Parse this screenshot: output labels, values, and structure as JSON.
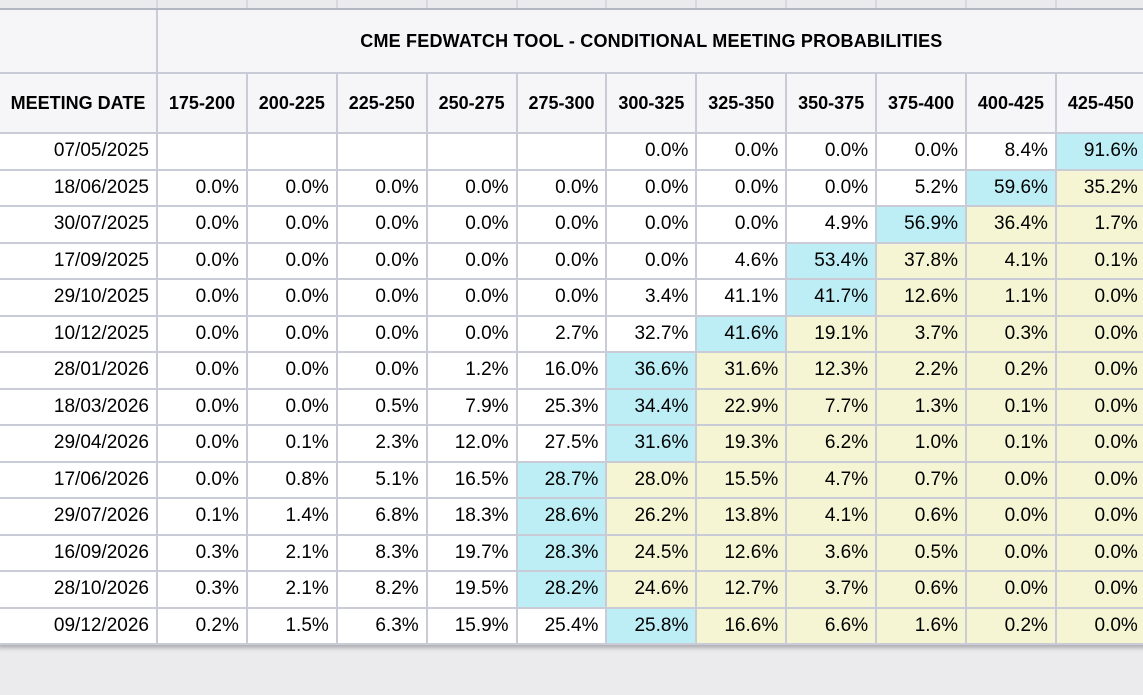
{
  "title": "CME FEDWATCH TOOL - CONDITIONAL MEETING PROBABILITIES",
  "table": {
    "corner_header": "MEETING DATE",
    "rate_bins": [
      "175-200",
      "200-225",
      "225-250",
      "250-275",
      "275-300",
      "300-325",
      "325-350",
      "350-375",
      "375-400",
      "400-425",
      "425-450"
    ],
    "rows": [
      {
        "date": "07/05/2025",
        "values": [
          "",
          "",
          "",
          "",
          "",
          "0.0%",
          "0.0%",
          "0.0%",
          "0.0%",
          "8.4%",
          "91.6%"
        ],
        "highlight": "wwwwwwwwwwc"
      },
      {
        "date": "18/06/2025",
        "values": [
          "0.0%",
          "0.0%",
          "0.0%",
          "0.0%",
          "0.0%",
          "0.0%",
          "0.0%",
          "0.0%",
          "5.2%",
          "59.6%",
          "35.2%"
        ],
        "highlight": "wwwwwwwwwcy"
      },
      {
        "date": "30/07/2025",
        "values": [
          "0.0%",
          "0.0%",
          "0.0%",
          "0.0%",
          "0.0%",
          "0.0%",
          "0.0%",
          "4.9%",
          "56.9%",
          "36.4%",
          "1.7%"
        ],
        "highlight": "wwwwwwwwcyy"
      },
      {
        "date": "17/09/2025",
        "values": [
          "0.0%",
          "0.0%",
          "0.0%",
          "0.0%",
          "0.0%",
          "0.0%",
          "4.6%",
          "53.4%",
          "37.8%",
          "4.1%",
          "0.1%"
        ],
        "highlight": "wwwwwwwcyyy"
      },
      {
        "date": "29/10/2025",
        "values": [
          "0.0%",
          "0.0%",
          "0.0%",
          "0.0%",
          "0.0%",
          "3.4%",
          "41.1%",
          "41.7%",
          "12.6%",
          "1.1%",
          "0.0%"
        ],
        "highlight": "wwwwwwwcyyy"
      },
      {
        "date": "10/12/2025",
        "values": [
          "0.0%",
          "0.0%",
          "0.0%",
          "0.0%",
          "2.7%",
          "32.7%",
          "41.6%",
          "19.1%",
          "3.7%",
          "0.3%",
          "0.0%"
        ],
        "highlight": "wwwwwwcyyyy"
      },
      {
        "date": "28/01/2026",
        "values": [
          "0.0%",
          "0.0%",
          "0.0%",
          "1.2%",
          "16.0%",
          "36.6%",
          "31.6%",
          "12.3%",
          "2.2%",
          "0.2%",
          "0.0%"
        ],
        "highlight": "wwwwwcyyyyy"
      },
      {
        "date": "18/03/2026",
        "values": [
          "0.0%",
          "0.0%",
          "0.5%",
          "7.9%",
          "25.3%",
          "34.4%",
          "22.9%",
          "7.7%",
          "1.3%",
          "0.1%",
          "0.0%"
        ],
        "highlight": "wwwwwcyyyyy"
      },
      {
        "date": "29/04/2026",
        "values": [
          "0.0%",
          "0.1%",
          "2.3%",
          "12.0%",
          "27.5%",
          "31.6%",
          "19.3%",
          "6.2%",
          "1.0%",
          "0.1%",
          "0.0%"
        ],
        "highlight": "wwwwwcyyyyy"
      },
      {
        "date": "17/06/2026",
        "values": [
          "0.0%",
          "0.8%",
          "5.1%",
          "16.5%",
          "28.7%",
          "28.0%",
          "15.5%",
          "4.7%",
          "0.7%",
          "0.0%",
          "0.0%"
        ],
        "highlight": "wwwwcyyyyyy"
      },
      {
        "date": "29/07/2026",
        "values": [
          "0.1%",
          "1.4%",
          "6.8%",
          "18.3%",
          "28.6%",
          "26.2%",
          "13.8%",
          "4.1%",
          "0.6%",
          "0.0%",
          "0.0%"
        ],
        "highlight": "wwwwcyyyyyy"
      },
      {
        "date": "16/09/2026",
        "values": [
          "0.3%",
          "2.1%",
          "8.3%",
          "19.7%",
          "28.3%",
          "24.5%",
          "12.6%",
          "3.6%",
          "0.5%",
          "0.0%",
          "0.0%"
        ],
        "highlight": "wwwwcyyyyyy"
      },
      {
        "date": "28/10/2026",
        "values": [
          "0.3%",
          "2.1%",
          "8.2%",
          "19.5%",
          "28.2%",
          "24.6%",
          "12.7%",
          "3.7%",
          "0.6%",
          "0.0%",
          "0.0%"
        ],
        "highlight": "wwwwcyyyyyy"
      },
      {
        "date": "09/12/2026",
        "values": [
          "0.2%",
          "1.5%",
          "6.3%",
          "15.9%",
          "25.4%",
          "25.8%",
          "16.6%",
          "6.6%",
          "1.6%",
          "0.2%",
          "0.0%"
        ],
        "highlight": "wwwwwcyyyyy"
      }
    ]
  },
  "colors": {
    "highlight_cyan": "#bdeef5",
    "highlight_yellow": "#f5f5d3",
    "header_bg": "#f6f6f8",
    "cell_border": "#c9ccd6",
    "table_top_border": "#b3b7c2",
    "page_bg": "#ebebee",
    "text": "#000000"
  }
}
